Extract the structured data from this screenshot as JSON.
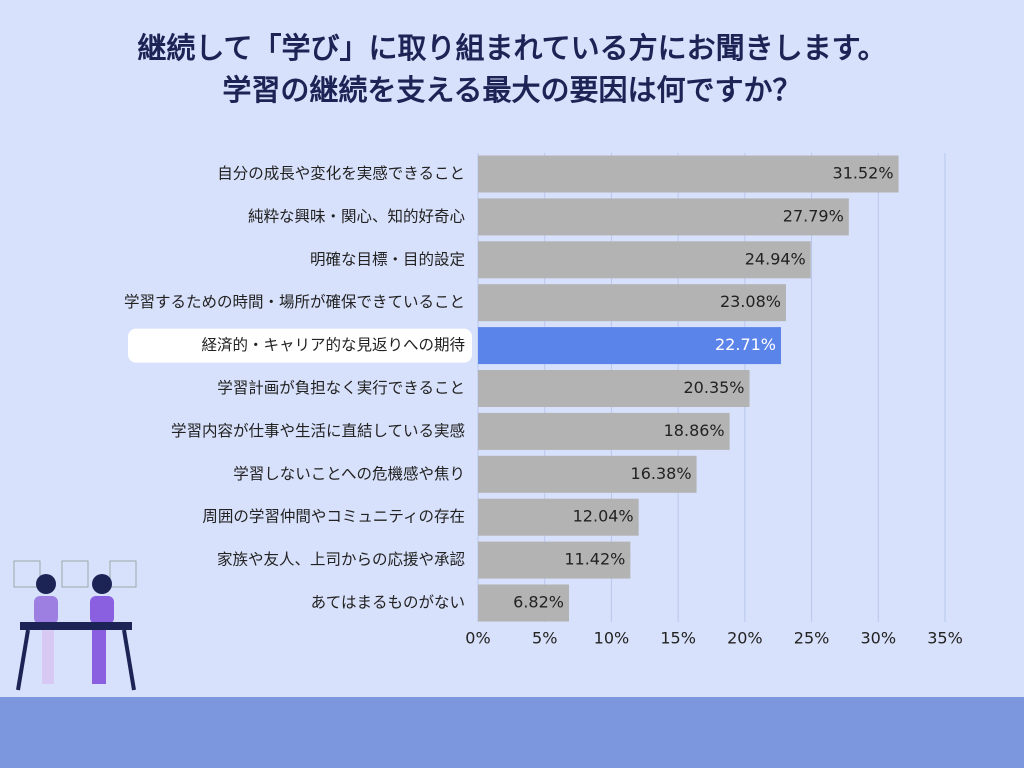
{
  "chart_data": {
    "type": "hbar",
    "title": "継続して「学び」に取り組まれている方にお聞きします。",
    "subtitle": "学習の継続を支える最大の要因は何ですか？",
    "categories": [
      "自分の成長や変化を実感できること",
      "純粋な興味・関心、知的好奇心",
      "明確な目標・目的設定",
      "学習するための時間・場所が確保できていること",
      "経済的・キャリア的な見返りへの期待",
      "学習計画が負担なく実行できること",
      "学習内容が仕事や生活に直結している実感",
      "学習しないことへの危機感や焦り",
      "周囲の学習仲間やコミュニティの存在",
      "家族や友人、上司からの応援や承認",
      "あてはまるものがない"
    ],
    "values": [
      31.52,
      27.79,
      24.94,
      23.08,
      22.71,
      20.35,
      18.86,
      16.38,
      12.04,
      11.42,
      6.82
    ],
    "value_labels": [
      "31.52%",
      "27.79%",
      "24.94%",
      "23.08%",
      "22.71%",
      "20.35%",
      "18.86%",
      "16.38%",
      "12.04%",
      "11.42%",
      "6.82%"
    ],
    "color": "#b3b3b3",
    "colors": [
      "#b3b3b3",
      "#b3b3b3",
      "#b3b3b3",
      "#b3b3b3",
      "#5b84ea",
      "#b3b3b3",
      "#b3b3b3",
      "#b3b3b3",
      "#b3b3b3",
      "#b3b3b3",
      "#b3b3b3"
    ],
    "xlim": [
      0,
      35
    ],
    "xticks": [
      {
        "value": 0,
        "label": "0%"
      },
      {
        "value": 5,
        "label": "5%"
      },
      {
        "value": 10,
        "label": "10%"
      },
      {
        "value": 15,
        "label": "15%"
      },
      {
        "value": 20,
        "label": "20%"
      },
      {
        "value": 25,
        "label": "25%"
      },
      {
        "value": 30,
        "label": "30%"
      },
      {
        "value": 35,
        "label": "35%"
      }
    ],
    "grid": true
  }
}
